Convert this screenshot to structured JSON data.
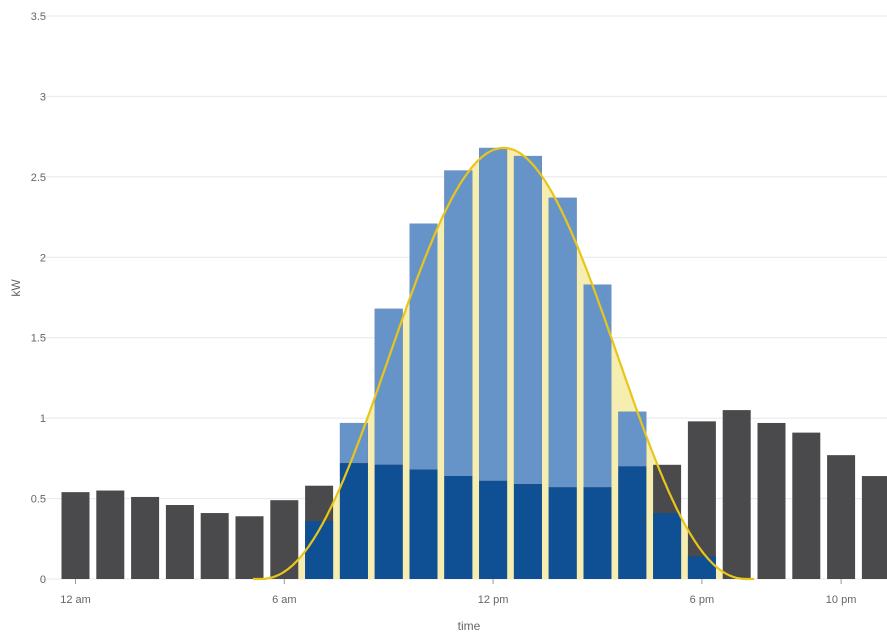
{
  "chart_data": {
    "type": "bar",
    "xlabel": "time",
    "ylabel": "kW",
    "ylim": [
      0,
      3.5
    ],
    "yticks": [
      "0",
      "0.5",
      "1",
      "1.5",
      "2",
      "2.5",
      "3",
      "3.5"
    ],
    "ytick_values": [
      0,
      0.5,
      1,
      1.5,
      2,
      2.5,
      3,
      3.5
    ],
    "xticks": [
      {
        "hour": 0,
        "label": "12 am"
      },
      {
        "hour": 6,
        "label": "6 am"
      },
      {
        "hour": 12,
        "label": "12 pm"
      },
      {
        "hour": 18,
        "label": "6 pm"
      },
      {
        "hour": 22,
        "label": "10 pm"
      }
    ],
    "grid": true,
    "legend": "none",
    "x": [
      0,
      1,
      2,
      3,
      4,
      5,
      6,
      7,
      8,
      9,
      10,
      11,
      12,
      13,
      14,
      15,
      16,
      17,
      18,
      19,
      20,
      21,
      22,
      23
    ],
    "series": [
      {
        "key": "load",
        "color": "#4a4a4c",
        "values": [
          0.54,
          0.55,
          0.51,
          0.46,
          0.41,
          0.39,
          0.49,
          0.58,
          0.97,
          1.68,
          2.21,
          2.54,
          2.68,
          2.63,
          2.37,
          1.83,
          1.04,
          0.71,
          0.98,
          1.05,
          0.97,
          0.91,
          0.77,
          0.64
        ]
      },
      {
        "key": "solar-export",
        "color": "#6794c8",
        "values": [
          0,
          0,
          0,
          0,
          0,
          0,
          0,
          0,
          0.25,
          0.97,
          1.53,
          1.9,
          2.07,
          2.04,
          1.8,
          1.26,
          0.34,
          0,
          0,
          0,
          0,
          0,
          0,
          0
        ]
      },
      {
        "key": "solar-self-consumed",
        "color": "#0f4f94",
        "values": [
          0,
          0,
          0,
          0,
          0,
          0,
          0,
          0.36,
          0.72,
          0.71,
          0.68,
          0.64,
          0.61,
          0.59,
          0.57,
          0.57,
          0.7,
          0.41,
          0.14,
          0,
          0,
          0,
          0,
          0
        ]
      },
      {
        "key": "solar-production-curve",
        "color": "#e8c619",
        "fill": "#f5eeb0",
        "type": "area",
        "peak": 2.68,
        "peak_hour": 12.3,
        "start_hour": 5.3,
        "end_hour": 19.3
      }
    ]
  }
}
